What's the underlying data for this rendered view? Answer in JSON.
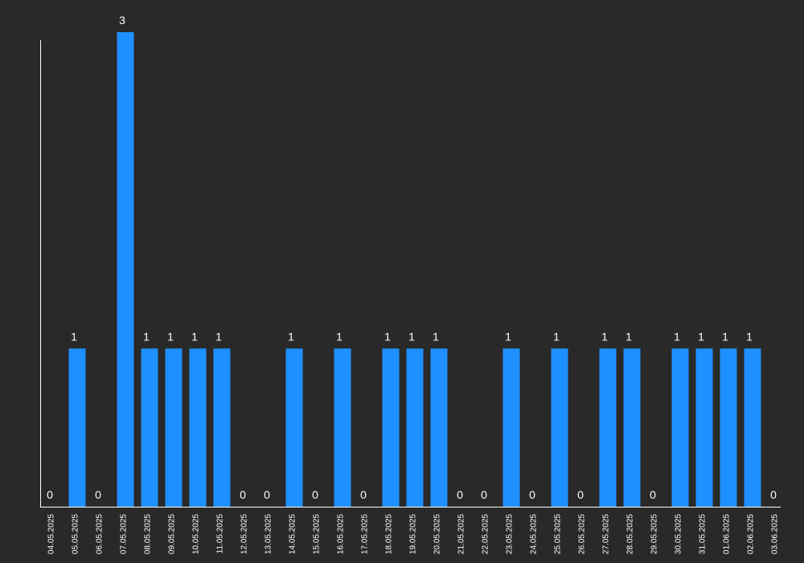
{
  "chart_data": {
    "type": "bar",
    "categories": [
      "04.05.2025",
      "05.05.2025",
      "06.05.2025",
      "07.05.2025",
      "08.05.2025",
      "09.05.2025",
      "10.05.2025",
      "11.05.2025",
      "12.05.2025",
      "13.05.2025",
      "14.05.2025",
      "15.05.2025",
      "16.05.2025",
      "17.05.2025",
      "18.05.2025",
      "19.05.2025",
      "20.05.2025",
      "21.05.2025",
      "22.05.2025",
      "23.05.2025",
      "24.05.2025",
      "25.05.2025",
      "26.05.2025",
      "27.05.2025",
      "28.05.2025",
      "29.05.2025",
      "30.05.2025",
      "31.05.2025",
      "01.06.2025",
      "02.06.2025",
      "03.06.2025"
    ],
    "values": [
      0,
      1,
      0,
      3,
      1,
      1,
      1,
      1,
      0,
      0,
      1,
      0,
      1,
      0,
      1,
      1,
      1,
      0,
      0,
      1,
      0,
      1,
      0,
      1,
      1,
      0,
      1,
      1,
      1,
      1,
      0
    ],
    "ylim": [
      0,
      3
    ],
    "grid": false,
    "colors": {
      "bar": "#1e90ff",
      "background": "#292929",
      "axis": "#ffffff",
      "text": "#ffffff"
    }
  }
}
